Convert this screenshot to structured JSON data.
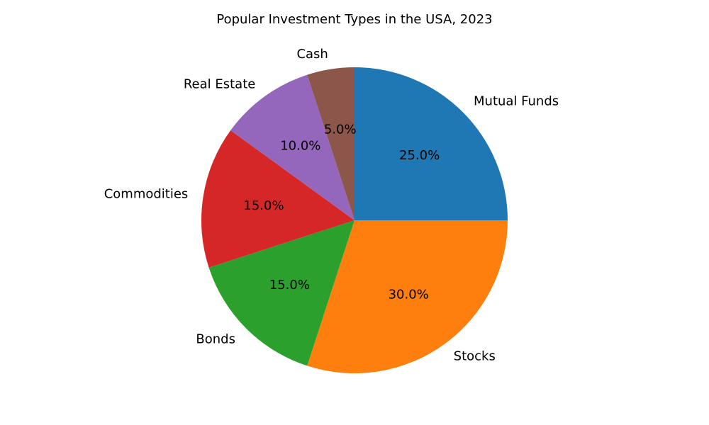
{
  "chart_data": {
    "type": "pie",
    "title": "Popular Investment Types in the USA, 2023",
    "start_angle_deg": 90,
    "direction": "clockwise",
    "label_format": "percent_one_decimal",
    "slices": [
      {
        "label": "Mutual Funds",
        "value": 25.0,
        "color": "#1f77b4"
      },
      {
        "label": "Stocks",
        "value": 30.0,
        "color": "#ff7f0e"
      },
      {
        "label": "Bonds",
        "value": 15.0,
        "color": "#2ca02c"
      },
      {
        "label": "Commodities",
        "value": 15.0,
        "color": "#d62728"
      },
      {
        "label": "Real Estate",
        "value": 10.0,
        "color": "#9467bd"
      },
      {
        "label": "Cash",
        "value": 5.0,
        "color": "#8c564b"
      }
    ]
  }
}
